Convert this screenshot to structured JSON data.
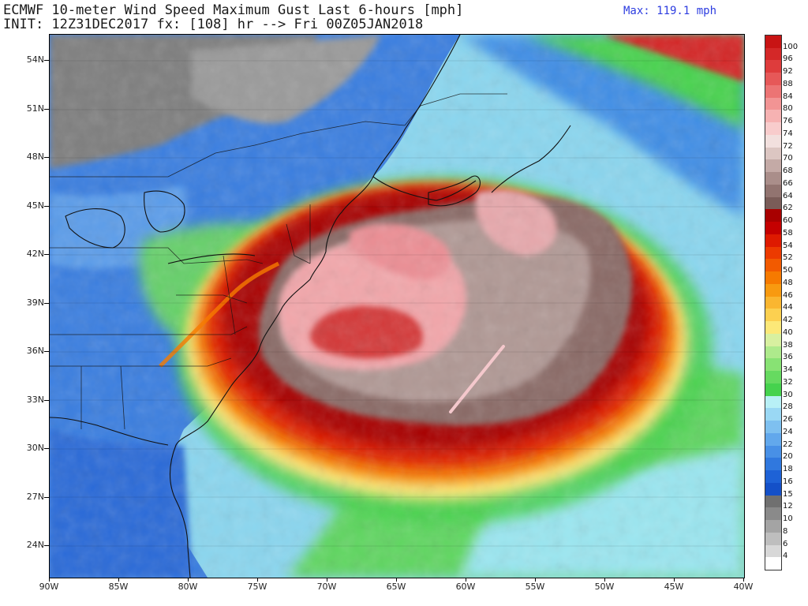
{
  "header": {
    "title_line1": "ECMWF 10-meter Wind Speed Maximum Gust Last 6-hours [mph]",
    "title_line2": "INIT: 12Z31DEC2017 fx: [108] hr --> Fri 00Z05JAN2018",
    "max_label": "Max: 119.1 mph"
  },
  "axes": {
    "lat_labels": [
      "54N",
      "51N",
      "48N",
      "45N",
      "42N",
      "39N",
      "36N",
      "33N",
      "30N",
      "27N",
      "24N"
    ],
    "lon_labels": [
      "90W",
      "85W",
      "80W",
      "75W",
      "70W",
      "65W",
      "60W",
      "55W",
      "50W",
      "45W",
      "40W"
    ]
  },
  "colorbar": {
    "levels": [
      {
        "label": "100",
        "color": "#c81414"
      },
      {
        "label": "96",
        "color": "#d42828"
      },
      {
        "label": "92",
        "color": "#de3c3c"
      },
      {
        "label": "88",
        "color": "#e65858"
      },
      {
        "label": "84",
        "color": "#ec7474"
      },
      {
        "label": "80",
        "color": "#f29494"
      },
      {
        "label": "76",
        "color": "#f6b2b2"
      },
      {
        "label": "74",
        "color": "#f8cccc"
      },
      {
        "label": "72",
        "color": "#f2e0de"
      },
      {
        "label": "70",
        "color": "#dcc6c2"
      },
      {
        "label": "68",
        "color": "#c4aaa6"
      },
      {
        "label": "66",
        "color": "#aa8e8a"
      },
      {
        "label": "64",
        "color": "#927470"
      },
      {
        "label": "62",
        "color": "#7a5c58"
      },
      {
        "label": "60",
        "color": "#a80000"
      },
      {
        "label": "58",
        "color": "#c40000"
      },
      {
        "label": "54",
        "color": "#de1a00"
      },
      {
        "label": "52",
        "color": "#ec3a00"
      },
      {
        "label": "50",
        "color": "#f25a00"
      },
      {
        "label": "48",
        "color": "#f67a00"
      },
      {
        "label": "46",
        "color": "#f89a10"
      },
      {
        "label": "44",
        "color": "#fab630"
      },
      {
        "label": "42",
        "color": "#fcd050"
      },
      {
        "label": "40",
        "color": "#fce878"
      },
      {
        "label": "38",
        "color": "#d8f0a0"
      },
      {
        "label": "36",
        "color": "#aeea8c"
      },
      {
        "label": "34",
        "color": "#88e274"
      },
      {
        "label": "32",
        "color": "#66da60"
      },
      {
        "label": "30",
        "color": "#46d24e"
      },
      {
        "label": "28",
        "color": "#b8f0f6"
      },
      {
        "label": "26",
        "color": "#9ad8f4"
      },
      {
        "label": "24",
        "color": "#7ec0f0"
      },
      {
        "label": "22",
        "color": "#62a8ec"
      },
      {
        "label": "20",
        "color": "#4890e6"
      },
      {
        "label": "18",
        "color": "#3078de"
      },
      {
        "label": "16",
        "color": "#1e62d6"
      },
      {
        "label": "15",
        "color": "#1450c8"
      },
      {
        "label": "12",
        "color": "#707070"
      },
      {
        "label": "10",
        "color": "#8a8a8a"
      },
      {
        "label": "8",
        "color": "#a4a4a4"
      },
      {
        "label": "6",
        "color": "#bebebe"
      },
      {
        "label": "4",
        "color": "#d8d8d8"
      },
      {
        "label": "",
        "color": "#ffffff"
      }
    ]
  }
}
